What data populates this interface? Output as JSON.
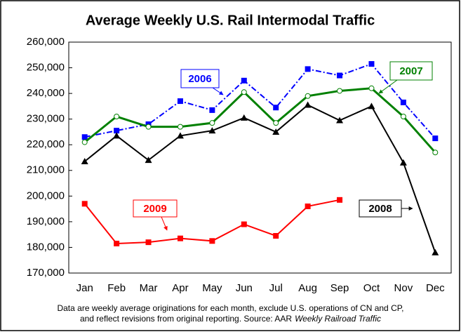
{
  "chart_data": {
    "type": "line",
    "title": "Average Weekly U.S. Rail Intermodal Traffic",
    "categories": [
      "Jan",
      "Feb",
      "Mar",
      "Apr",
      "May",
      "Jun",
      "Jul",
      "Aug",
      "Sep",
      "Oct",
      "Nov",
      "Dec"
    ],
    "series": [
      {
        "name": "2006",
        "color": "#0000ff",
        "marker": "square",
        "dash": "dashdot",
        "values": [
          223000,
          225500,
          228000,
          237000,
          233500,
          245000,
          234500,
          249500,
          247000,
          251500,
          236500,
          222500
        ]
      },
      {
        "name": "2007",
        "color": "#008000",
        "marker": "circle",
        "dash": "solid",
        "values": [
          221000,
          231000,
          227000,
          227000,
          228500,
          240500,
          228500,
          239000,
          241000,
          242000,
          231000,
          217000
        ]
      },
      {
        "name": "2008",
        "color": "#000000",
        "marker": "triangle",
        "dash": "solid",
        "values": [
          213500,
          223500,
          214000,
          223500,
          225500,
          230500,
          225000,
          235500,
          229500,
          235000,
          213000,
          178000
        ]
      },
      {
        "name": "2009",
        "color": "#ff0000",
        "marker": "square",
        "dash": "solid",
        "values": [
          197000,
          181500,
          182000,
          183500,
          182500,
          189000,
          184500,
          196000,
          198500,
          null,
          null,
          null
        ]
      }
    ],
    "ylim": [
      170000,
      260000
    ],
    "yticks": [
      {
        "value": 170000,
        "label": "170,000"
      },
      {
        "value": 180000,
        "label": "180,000"
      },
      {
        "value": 190000,
        "label": "190,000"
      },
      {
        "value": 200000,
        "label": "200,000"
      },
      {
        "value": 210000,
        "label": "210,000"
      },
      {
        "value": 220000,
        "label": "220,000"
      },
      {
        "value": 230000,
        "label": "230,000"
      },
      {
        "value": 240000,
        "label": "240,000"
      },
      {
        "value": 250000,
        "label": "250,000"
      },
      {
        "value": 260000,
        "label": "260,000"
      }
    ],
    "grid": false,
    "footnote": [
      "Data are weekly average originations for each month, exclude U.S. operations of CN and CP,",
      "and reflect revisions from original reporting.  Source: AAR",
      "Weekly Railroad Traffic"
    ]
  }
}
